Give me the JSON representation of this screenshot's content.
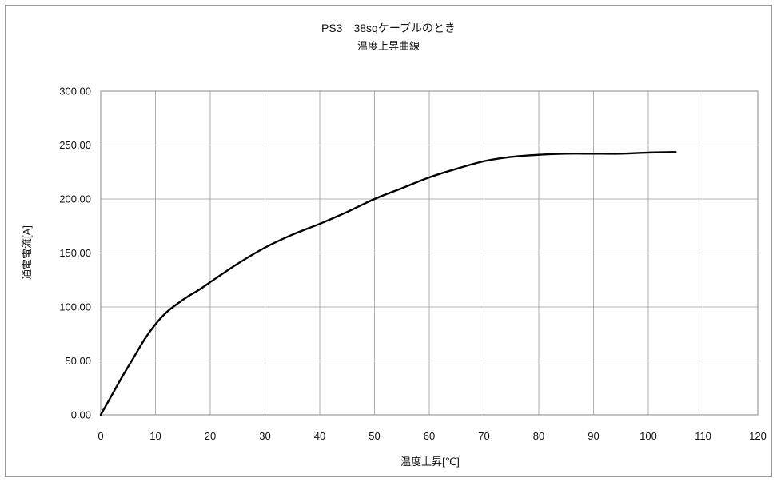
{
  "chart_data": {
    "type": "line",
    "title": "PS3　38sqケーブルのとき",
    "subtitle": "温度上昇曲線",
    "xlabel": "温度上昇[℃]",
    "ylabel": "通電電流[A]",
    "xlim": [
      0,
      120
    ],
    "ylim": [
      0,
      300
    ],
    "xticks": [
      "0",
      "10",
      "20",
      "30",
      "40",
      "50",
      "60",
      "70",
      "80",
      "90",
      "100",
      "110",
      "120"
    ],
    "yticks": [
      "0.00",
      "50.00",
      "100.00",
      "150.00",
      "200.00",
      "250.00",
      "300.00"
    ],
    "grid": true,
    "line_color": "#000000",
    "series": [
      {
        "x": [
          0,
          2,
          4,
          6,
          8,
          10,
          12,
          14,
          16,
          18,
          20,
          25,
          30,
          35,
          40,
          45,
          50,
          55,
          60,
          65,
          70,
          75,
          80,
          85,
          90,
          95,
          100,
          105
        ],
        "values": [
          0,
          18,
          36,
          53,
          70,
          84,
          95,
          103,
          110,
          116,
          123,
          140,
          155,
          167,
          177,
          188,
          200,
          210,
          220,
          228,
          235,
          239,
          241,
          242,
          242,
          242,
          243,
          243.5
        ]
      }
    ]
  }
}
